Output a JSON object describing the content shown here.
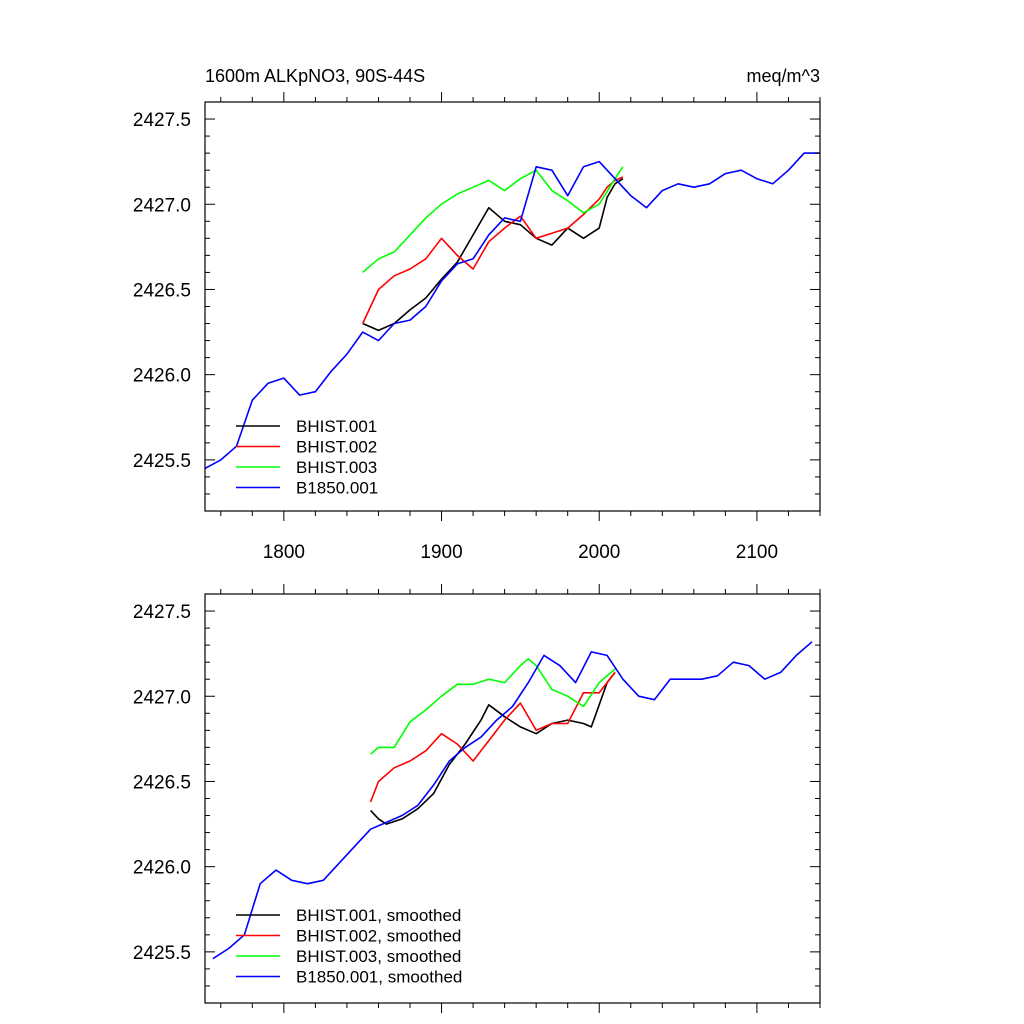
{
  "colors": {
    "BHIST.001": "#000000",
    "BHIST.002": "#ff0000",
    "BHIST.003": "#00ff00",
    "B1850.001": "#0000ff",
    "frame": "#000000",
    "background": "#ffffff"
  },
  "chart_data": [
    {
      "type": "line",
      "title": "1600m ALKpNO3, 90S-44S",
      "units": "meq/m^3",
      "xlim": [
        1750,
        2140
      ],
      "ylim": [
        2425.2,
        2427.6
      ],
      "xticks": [
        1800,
        1900,
        2000,
        2100
      ],
      "xtick_labels": [
        "1800",
        "1900",
        "2000",
        "2100"
      ],
      "yticks": [
        2425.5,
        2426.0,
        2426.5,
        2427.0,
        2427.5
      ],
      "ytick_labels": [
        "2425.5",
        "2426.0",
        "2426.5",
        "2427.0",
        "2427.5"
      ],
      "grid": false,
      "legend_position": "bottom-left",
      "series": [
        {
          "name": "BHIST.001",
          "color_key": "BHIST.001",
          "x": [
            1850,
            1860,
            1870,
            1880,
            1890,
            1900,
            1910,
            1920,
            1930,
            1940,
            1950,
            1960,
            1970,
            1980,
            1990,
            2000,
            2005,
            2010,
            2015
          ],
          "y": [
            2426.3,
            2426.26,
            2426.3,
            2426.38,
            2426.45,
            2426.56,
            2426.66,
            2426.82,
            2426.98,
            2426.9,
            2426.88,
            2426.8,
            2426.76,
            2426.86,
            2426.8,
            2426.86,
            2427.04,
            2427.12,
            2427.15
          ]
        },
        {
          "name": "BHIST.002",
          "color_key": "BHIST.002",
          "x": [
            1850,
            1860,
            1870,
            1880,
            1890,
            1900,
            1910,
            1920,
            1930,
            1940,
            1950,
            1960,
            1970,
            1980,
            1990,
            2000,
            2005,
            2010,
            2015
          ],
          "y": [
            2426.3,
            2426.5,
            2426.58,
            2426.62,
            2426.68,
            2426.8,
            2426.7,
            2426.62,
            2426.78,
            2426.86,
            2426.93,
            2426.8,
            2426.83,
            2426.86,
            2426.94,
            2427.03,
            2427.1,
            2427.14,
            2427.16
          ]
        },
        {
          "name": "BHIST.003",
          "color_key": "BHIST.003",
          "x": [
            1850,
            1860,
            1870,
            1880,
            1890,
            1900,
            1910,
            1920,
            1930,
            1940,
            1950,
            1960,
            1970,
            1980,
            1990,
            2000,
            2010,
            2015
          ],
          "y": [
            2426.6,
            2426.68,
            2426.72,
            2426.82,
            2426.92,
            2427.0,
            2427.06,
            2427.1,
            2427.14,
            2427.08,
            2427.15,
            2427.2,
            2427.08,
            2427.02,
            2426.95,
            2427.0,
            2427.15,
            2427.22
          ]
        },
        {
          "name": "B1850.001",
          "color_key": "B1850.001",
          "x": [
            1750,
            1760,
            1770,
            1780,
            1790,
            1800,
            1810,
            1820,
            1830,
            1840,
            1850,
            1860,
            1870,
            1880,
            1890,
            1900,
            1910,
            1920,
            1930,
            1940,
            1950,
            1960,
            1970,
            1980,
            1990,
            2000,
            2010,
            2020,
            2030,
            2040,
            2050,
            2060,
            2070,
            2080,
            2090,
            2100,
            2110,
            2120,
            2130,
            2140
          ],
          "y": [
            2425.45,
            2425.5,
            2425.58,
            2425.85,
            2425.95,
            2425.98,
            2425.88,
            2425.9,
            2426.02,
            2426.12,
            2426.25,
            2426.2,
            2426.3,
            2426.32,
            2426.4,
            2426.55,
            2426.65,
            2426.68,
            2426.82,
            2426.92,
            2426.9,
            2427.22,
            2427.2,
            2427.05,
            2427.22,
            2427.25,
            2427.15,
            2427.05,
            2426.98,
            2427.08,
            2427.12,
            2427.1,
            2427.12,
            2427.18,
            2427.2,
            2427.15,
            2427.12,
            2427.2,
            2427.3,
            2427.3
          ]
        }
      ]
    },
    {
      "type": "line",
      "xlim": [
        1750,
        2140
      ],
      "ylim": [
        2425.2,
        2427.6
      ],
      "xticks": [
        1800,
        1900,
        2000,
        2100
      ],
      "xtick_labels": [],
      "yticks": [
        2425.5,
        2426.0,
        2426.5,
        2427.0,
        2427.5
      ],
      "ytick_labels": [
        "2425.5",
        "2426.0",
        "2426.5",
        "2427.0",
        "2427.5"
      ],
      "grid": false,
      "legend_position": "bottom-left",
      "series": [
        {
          "name": "BHIST.001, smoothed",
          "color_key": "BHIST.001",
          "x": [
            1855,
            1860,
            1865,
            1875,
            1885,
            1895,
            1905,
            1915,
            1925,
            1930,
            1940,
            1950,
            1960,
            1970,
            1980,
            1990,
            1995,
            2000,
            2005,
            2010
          ],
          "y": [
            2426.33,
            2426.28,
            2426.25,
            2426.28,
            2426.34,
            2426.43,
            2426.6,
            2426.72,
            2426.86,
            2426.95,
            2426.88,
            2426.82,
            2426.78,
            2426.84,
            2426.86,
            2426.84,
            2426.82,
            2426.95,
            2427.08,
            2427.14
          ]
        },
        {
          "name": "BHIST.002, smoothed",
          "color_key": "BHIST.002",
          "x": [
            1855,
            1860,
            1870,
            1880,
            1890,
            1900,
            1910,
            1920,
            1930,
            1940,
            1950,
            1960,
            1970,
            1980,
            1990,
            2000,
            2010
          ],
          "y": [
            2426.38,
            2426.5,
            2426.58,
            2426.62,
            2426.68,
            2426.78,
            2426.72,
            2426.62,
            2426.74,
            2426.86,
            2426.96,
            2426.8,
            2426.84,
            2426.84,
            2427.02,
            2427.02,
            2427.14
          ]
        },
        {
          "name": "BHIST.003, smoothed",
          "color_key": "BHIST.003",
          "x": [
            1855,
            1860,
            1870,
            1880,
            1890,
            1900,
            1910,
            1920,
            1930,
            1940,
            1950,
            1955,
            1960,
            1970,
            1980,
            1990,
            2000,
            2010
          ],
          "y": [
            2426.66,
            2426.7,
            2426.7,
            2426.85,
            2426.92,
            2427.0,
            2427.07,
            2427.07,
            2427.1,
            2427.08,
            2427.18,
            2427.22,
            2427.18,
            2427.04,
            2427.0,
            2426.94,
            2427.08,
            2427.16
          ]
        },
        {
          "name": "B1850.001, smoothed",
          "color_key": "B1850.001",
          "x": [
            1755,
            1765,
            1775,
            1785,
            1795,
            1805,
            1815,
            1825,
            1835,
            1845,
            1855,
            1865,
            1875,
            1885,
            1895,
            1905,
            1915,
            1925,
            1935,
            1945,
            1955,
            1965,
            1975,
            1985,
            1995,
            2005,
            2015,
            2025,
            2035,
            2045,
            2055,
            2065,
            2075,
            2085,
            2095,
            2105,
            2115,
            2125,
            2135
          ],
          "y": [
            2425.46,
            2425.52,
            2425.6,
            2425.9,
            2425.98,
            2425.92,
            2425.9,
            2425.92,
            2426.02,
            2426.12,
            2426.22,
            2426.26,
            2426.3,
            2426.36,
            2426.48,
            2426.62,
            2426.7,
            2426.76,
            2426.86,
            2426.94,
            2427.08,
            2427.24,
            2427.18,
            2427.08,
            2427.26,
            2427.24,
            2427.1,
            2427.0,
            2426.98,
            2427.1,
            2427.1,
            2427.1,
            2427.12,
            2427.2,
            2427.18,
            2427.1,
            2427.14,
            2427.24,
            2427.32
          ]
        }
      ]
    }
  ]
}
